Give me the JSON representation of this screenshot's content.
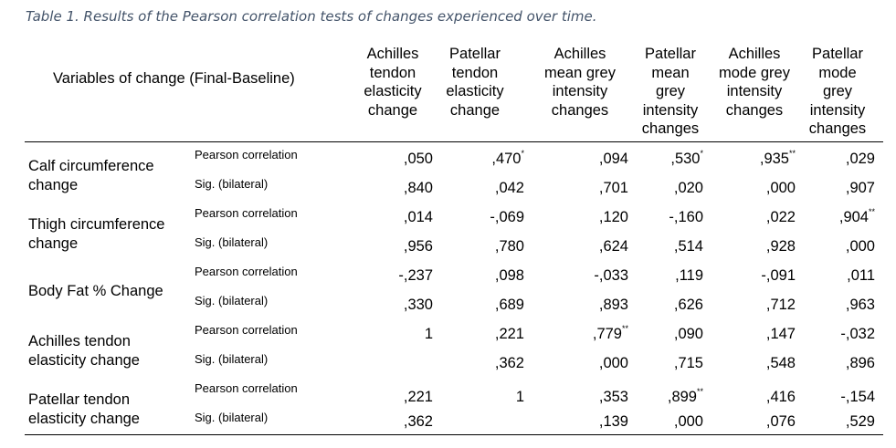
{
  "caption": "Table 1. Results of the Pearson correlation tests of changes experienced over time.",
  "variable_header": "Variables of change (Final-Baseline)",
  "columns": [
    {
      "lines": [
        "Achilles",
        "tendon",
        "elasticity",
        "change"
      ]
    },
    {
      "lines": [
        "Patellar",
        "tendon",
        "elasticity",
        "change"
      ]
    },
    {
      "lines": [
        "Achilles",
        "mean grey",
        "intensity",
        "changes"
      ]
    },
    {
      "lines": [
        "Patellar",
        "mean",
        "grey",
        "intensity",
        "changes"
      ]
    },
    {
      "lines": [
        "Achilles",
        "mode grey",
        "intensity",
        "changes"
      ]
    },
    {
      "lines": [
        "Patellar",
        "mode",
        "grey",
        "intensity",
        "changes"
      ]
    }
  ],
  "groups": [
    {
      "label": [
        "Calf circumference",
        "change"
      ],
      "rows": [
        {
          "stat": "Pearson correlation",
          "values": [
            ",050",
            ",470",
            ",094",
            ",530",
            ",935",
            ",029"
          ],
          "marks": [
            "",
            "*",
            "",
            "*",
            "**",
            ""
          ]
        },
        {
          "stat": "Sig. (bilateral)",
          "values": [
            ",840",
            ",042",
            ",701",
            ",020",
            ",000",
            ",907"
          ],
          "marks": [
            "",
            "",
            "",
            "",
            "",
            ""
          ]
        }
      ]
    },
    {
      "label": [
        "Thigh circumference",
        "change"
      ],
      "rows": [
        {
          "stat": "Pearson correlation",
          "values": [
            ",014",
            "-,069",
            ",120",
            "-,160",
            ",022",
            ",904"
          ],
          "marks": [
            "",
            "",
            "",
            "",
            "",
            "**"
          ]
        },
        {
          "stat": "Sig. (bilateral)",
          "values": [
            ",956",
            ",780",
            ",624",
            ",514",
            ",928",
            ",000"
          ],
          "marks": [
            "",
            "",
            "",
            "",
            "",
            ""
          ]
        }
      ]
    },
    {
      "label": [
        "Body Fat % Change"
      ],
      "rows": [
        {
          "stat": "Pearson correlation",
          "values": [
            "-,237",
            ",098",
            "-,033",
            ",119",
            "-,091",
            ",011"
          ],
          "marks": [
            "",
            "",
            "",
            "",
            "",
            ""
          ]
        },
        {
          "stat": "Sig. (bilateral)",
          "values": [
            ",330",
            ",689",
            ",893",
            ",626",
            ",712",
            ",963"
          ],
          "marks": [
            "",
            "",
            "",
            "",
            "",
            ""
          ]
        }
      ]
    },
    {
      "label": [
        "Achilles tendon",
        "elasticity change"
      ],
      "rows": [
        {
          "stat": "Pearson correlation",
          "values": [
            "1",
            ",221",
            ",779",
            ",090",
            ",147",
            "-,032"
          ],
          "marks": [
            "",
            "",
            "**",
            "",
            "",
            ""
          ]
        },
        {
          "stat": "Sig. (bilateral)",
          "values": [
            "",
            ",362",
            ",000",
            ",715",
            ",548",
            ",896"
          ],
          "marks": [
            "",
            "",
            "",
            "",
            "",
            ""
          ]
        }
      ]
    },
    {
      "label": [
        "Patellar tendon",
        "elasticity change"
      ],
      "rows": [
        {
          "stat": "Pearson correlation",
          "values": [
            ",221",
            "1",
            ",353",
            ",899",
            ",416",
            "-,154"
          ],
          "marks": [
            "",
            "",
            "",
            "**",
            "",
            ""
          ]
        },
        {
          "stat": "Sig. (bilateral)",
          "values": [
            ",362",
            "",
            ",139",
            ",000",
            ",076",
            ",529"
          ],
          "marks": [
            "",
            "",
            "",
            "",
            "",
            ""
          ]
        }
      ]
    }
  ]
}
